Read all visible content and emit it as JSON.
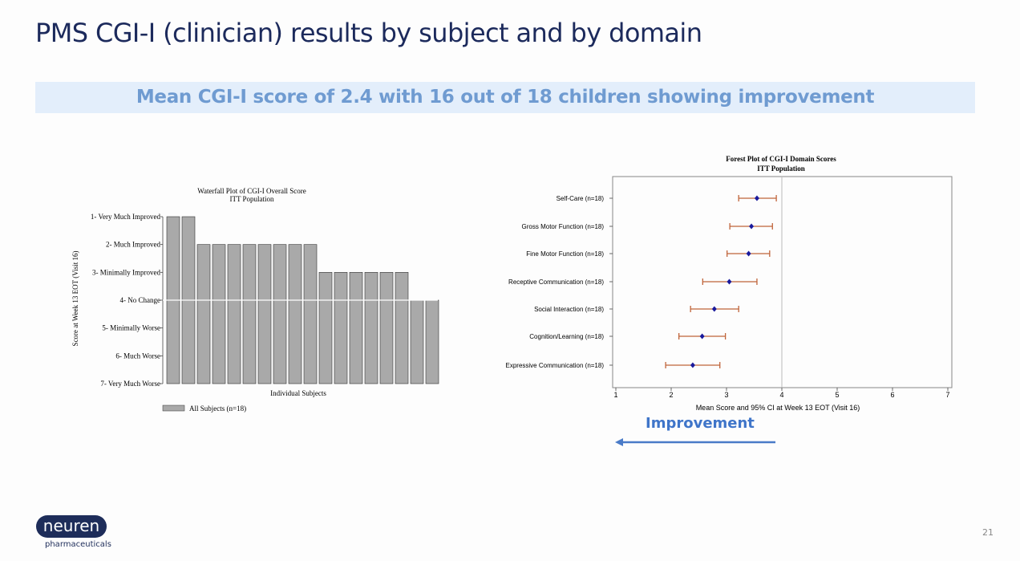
{
  "slide": {
    "title": "PMS CGI-I (clinician) results by subject and by domain",
    "banner": "Mean CGI-I score of 2.4 with 16 out of 18 children showing improvement",
    "improvement_label": "Improvement",
    "logo_text": "neuren",
    "logo_sub": "pharmaceuticals",
    "page_number": "21"
  },
  "chart_data": [
    {
      "type": "bar",
      "title": "Waterfall Plot of CGI-I Overall Score",
      "subtitle": "ITT Population",
      "xlabel": "Individual Subjects",
      "ylabel": "Score at Week 13 EOT (Visit 16)",
      "y_ticks": [
        "1- Very Much Improved",
        "2- Much Improved",
        "3- Minimally Improved",
        "4- No Change",
        "5- Minimally Worse",
        "6- Much Worse",
        "7- Very Much Worse"
      ],
      "ylim": [
        1,
        7
      ],
      "y_inverted": true,
      "legend": "All Subjects (n=18)",
      "legend_position": "bottom-left",
      "bar_color": "#a9a9a9",
      "values": [
        1,
        1,
        2,
        2,
        2,
        2,
        2,
        2,
        2,
        2,
        3,
        3,
        3,
        3,
        3,
        3,
        4,
        4
      ]
    },
    {
      "type": "scatter",
      "title": "Forest Plot of CGI-I Domain Scores",
      "subtitle": "ITT Population",
      "xlabel": "Mean Score and 95% CI at Week 13 EOT (Visit 16)",
      "xlim": [
        1,
        7
      ],
      "x_ticks": [
        "1",
        "2",
        "3",
        "4",
        "5",
        "6",
        "7"
      ],
      "reference_line": 4,
      "point_color": "#1a1a9c",
      "ci_color": "#c0643a",
      "categories": [
        "Self-Care (n=18)",
        "Gross Motor Function (n=18)",
        "Fine Motor Function (n=18)",
        "Receptive Communication (n=18)",
        "Social Interaction (n=18)",
        "Cognition/Learning (n=18)",
        "Expressive Communication (n=18)"
      ],
      "mean": [
        3.55,
        3.45,
        3.4,
        3.05,
        2.78,
        2.56,
        2.39
      ],
      "ci_low": [
        3.22,
        3.06,
        3.01,
        2.57,
        2.35,
        2.14,
        1.9
      ],
      "ci_high": [
        3.9,
        3.83,
        3.78,
        3.55,
        3.22,
        2.98,
        2.88
      ]
    }
  ]
}
